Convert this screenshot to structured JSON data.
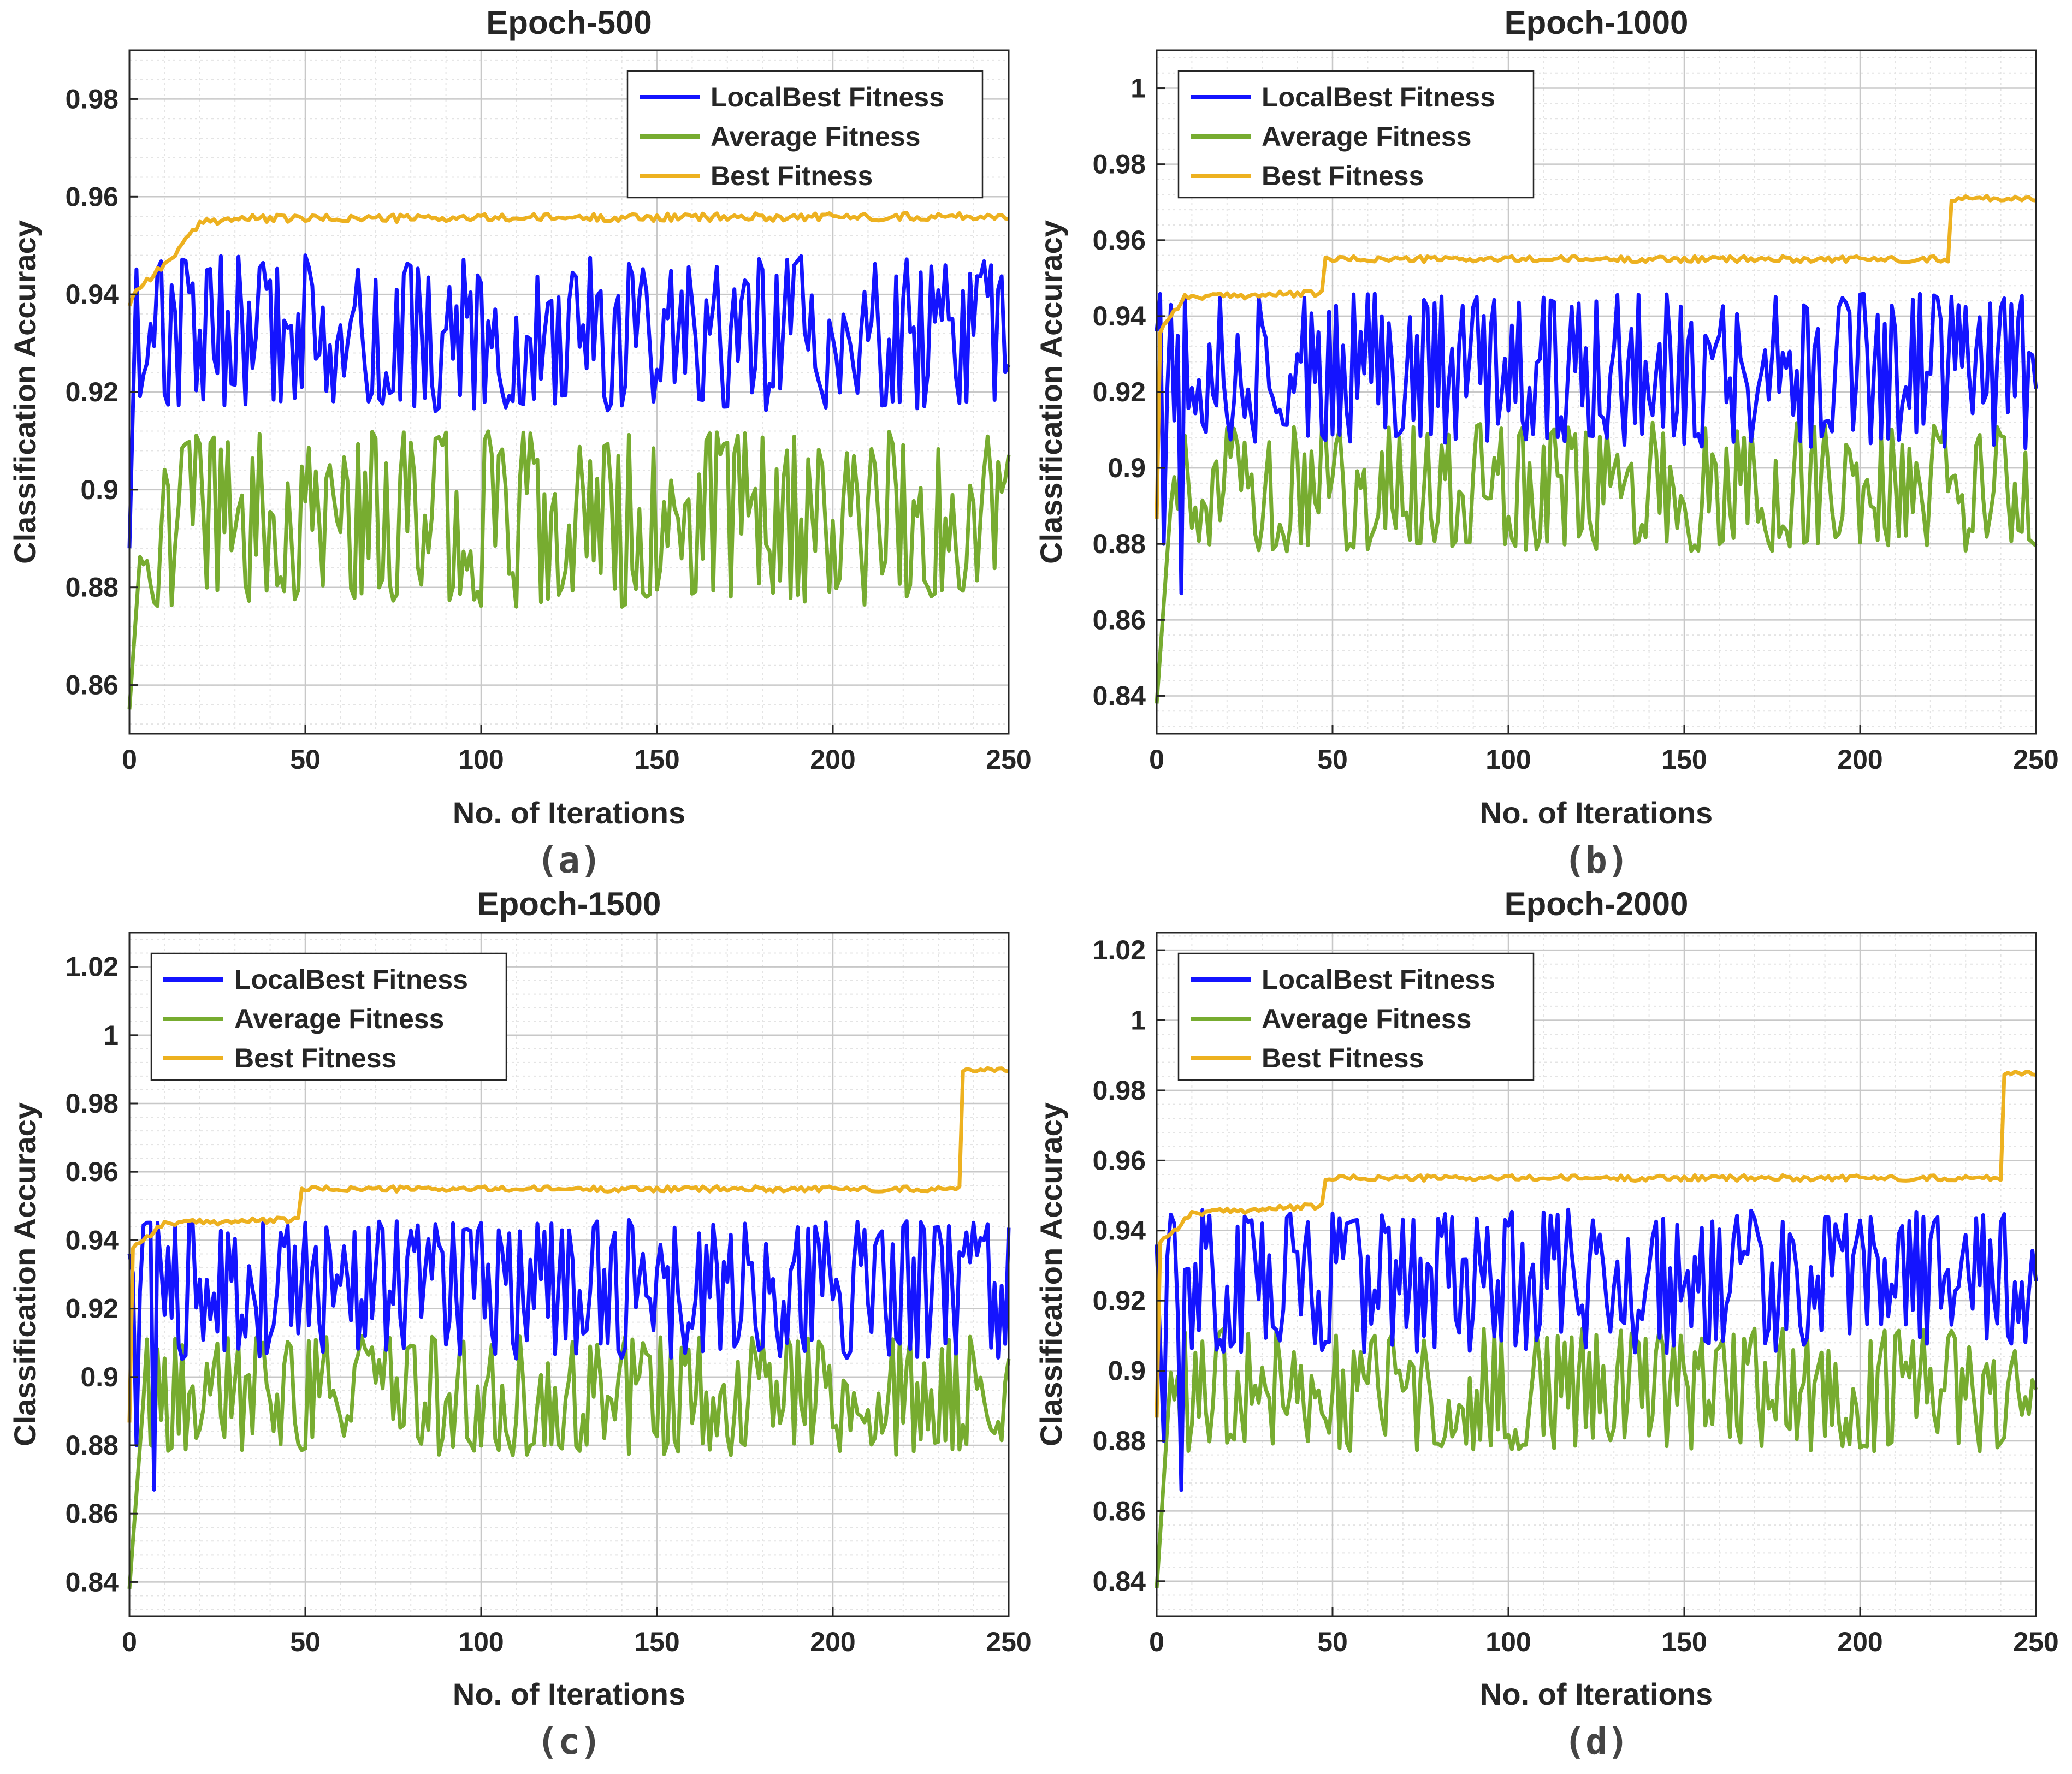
{
  "colors": {
    "local_best": "#1414ff",
    "average": "#77ac30",
    "best": "#edb120",
    "grid_major": "#c8c8c8",
    "grid_minor": "#e4e4e4",
    "axis": "#262626"
  },
  "chart_data": [
    {
      "type": "line",
      "subplot": "(a)",
      "title": "Epoch-500",
      "xlabel": "No. of Iterations",
      "ylabel": "Classification Accuracy",
      "xlim": [
        0,
        250
      ],
      "ylim": [
        0.85,
        0.99
      ],
      "xticks": [
        "0",
        "50",
        "100",
        "150",
        "200",
        "250"
      ],
      "yticks": [
        "0.86",
        "0.88",
        "0.9",
        "0.92",
        "0.94",
        "0.96",
        "0.98"
      ],
      "legend_position": "top-right",
      "series": [
        {
          "name": "LocalBest Fitness",
          "color_key": "local_best",
          "base": 0.93,
          "amp": 0.014,
          "seed": 11,
          "start": 0.888,
          "rise_end": 2,
          "min": 0.916,
          "max": 0.948
        },
        {
          "name": "Average Fitness",
          "color_key": "average",
          "base": 0.894,
          "amp": 0.016,
          "seed": 23,
          "start": 0.855,
          "rise_end": 3,
          "min": 0.876,
          "max": 0.912
        },
        {
          "name": "Best Fitness",
          "color_key": "best",
          "steps": [
            [
              0,
              0.938
            ],
            [
              1,
              0.94
            ],
            [
              5,
              0.943
            ],
            [
              10,
              0.946
            ],
            [
              21,
              0.955
            ],
            [
              30,
              0.9555
            ],
            [
              250,
              0.956
            ]
          ],
          "noise": 0.0008
        }
      ]
    },
    {
      "type": "line",
      "subplot": "(b)",
      "title": "Epoch-1000",
      "xlabel": "No. of Iterations",
      "ylabel": "Classification Accuracy",
      "xlim": [
        0,
        250
      ],
      "ylim": [
        0.83,
        1.01
      ],
      "xticks": [
        "0",
        "50",
        "100",
        "150",
        "200",
        "250"
      ],
      "yticks": [
        "0.84",
        "0.86",
        "0.88",
        "0.9",
        "0.92",
        "0.94",
        "0.96",
        "0.98",
        "1"
      ],
      "legend_position": "top-left",
      "series": [
        {
          "name": "LocalBest Fitness",
          "color_key": "local_best",
          "base": 0.926,
          "amp": 0.017,
          "seed": 37,
          "start": 0.936,
          "dip": [
            [
              2,
              0.88
            ],
            [
              7,
              0.867
            ]
          ],
          "min": 0.905,
          "max": 0.946
        },
        {
          "name": "Average Fitness",
          "color_key": "average",
          "base": 0.893,
          "amp": 0.014,
          "seed": 41,
          "start": 0.838,
          "rise_end": 4,
          "min": 0.878,
          "max": 0.912
        },
        {
          "name": "Best Fitness",
          "color_key": "best",
          "steps": [
            [
              0,
              0.887
            ],
            [
              1,
              0.936
            ],
            [
              3,
              0.939
            ],
            [
              8,
              0.945
            ],
            [
              47,
              0.946
            ],
            [
              48,
              0.955
            ],
            [
              225,
              0.955
            ],
            [
              226,
              0.971
            ],
            [
              250,
              0.971
            ]
          ],
          "noise": 0.0008
        }
      ]
    },
    {
      "type": "line",
      "subplot": "(c)",
      "title": "Epoch-1500",
      "xlabel": "No. of Iterations",
      "ylabel": "Classification Accuracy",
      "xlim": [
        0,
        250
      ],
      "ylim": [
        0.83,
        1.03
      ],
      "xticks": [
        "0",
        "50",
        "100",
        "150",
        "200",
        "250"
      ],
      "yticks": [
        "0.84",
        "0.86",
        "0.88",
        "0.9",
        "0.92",
        "0.94",
        "0.96",
        "0.98",
        "1",
        "1.02"
      ],
      "legend_position": "top-left",
      "series": [
        {
          "name": "LocalBest Fitness",
          "color_key": "local_best",
          "base": 0.926,
          "amp": 0.017,
          "seed": 53,
          "start": 0.936,
          "dip": [
            [
              2,
              0.88
            ],
            [
              7,
              0.867
            ]
          ],
          "min": 0.905,
          "max": 0.946
        },
        {
          "name": "Average Fitness",
          "color_key": "average",
          "base": 0.893,
          "amp": 0.014,
          "seed": 59,
          "start": 0.838,
          "rise_end": 4,
          "min": 0.877,
          "max": 0.912
        },
        {
          "name": "Best Fitness",
          "color_key": "best",
          "steps": [
            [
              0,
              0.887
            ],
            [
              1,
              0.938
            ],
            [
              5,
              0.941
            ],
            [
              10,
              0.945
            ],
            [
              48,
              0.946
            ],
            [
              49,
              0.955
            ],
            [
              236,
              0.955
            ],
            [
              237,
              0.99
            ],
            [
              250,
              0.99
            ]
          ],
          "noise": 0.0008
        }
      ]
    },
    {
      "type": "line",
      "subplot": "(d)",
      "title": "Epoch-2000",
      "xlabel": "No. of Iterations",
      "ylabel": "Classification Accuracy",
      "xlim": [
        0,
        250
      ],
      "ylim": [
        0.83,
        1.025
      ],
      "xticks": [
        "0",
        "50",
        "100",
        "150",
        "200",
        "250"
      ],
      "yticks": [
        "0.84",
        "0.86",
        "0.88",
        "0.9",
        "0.92",
        "0.94",
        "0.96",
        "0.98",
        "1",
        "1.02"
      ],
      "legend_position": "top-left",
      "series": [
        {
          "name": "LocalBest Fitness",
          "color_key": "local_best",
          "base": 0.926,
          "amp": 0.017,
          "seed": 71,
          "start": 0.936,
          "dip": [
            [
              2,
              0.88
            ],
            [
              7,
              0.866
            ]
          ],
          "min": 0.905,
          "max": 0.946
        },
        {
          "name": "Average Fitness",
          "color_key": "average",
          "base": 0.893,
          "amp": 0.014,
          "seed": 83,
          "start": 0.838,
          "rise_end": 4,
          "min": 0.877,
          "max": 0.912
        },
        {
          "name": "Best Fitness",
          "color_key": "best",
          "steps": [
            [
              0,
              0.887
            ],
            [
              1,
              0.937
            ],
            [
              5,
              0.94
            ],
            [
              10,
              0.945
            ],
            [
              47,
              0.947
            ],
            [
              48,
              0.954
            ],
            [
              50,
              0.955
            ],
            [
              240,
              0.955
            ],
            [
              241,
              0.985
            ],
            [
              250,
              0.985
            ]
          ],
          "noise": 0.0008
        }
      ]
    }
  ]
}
